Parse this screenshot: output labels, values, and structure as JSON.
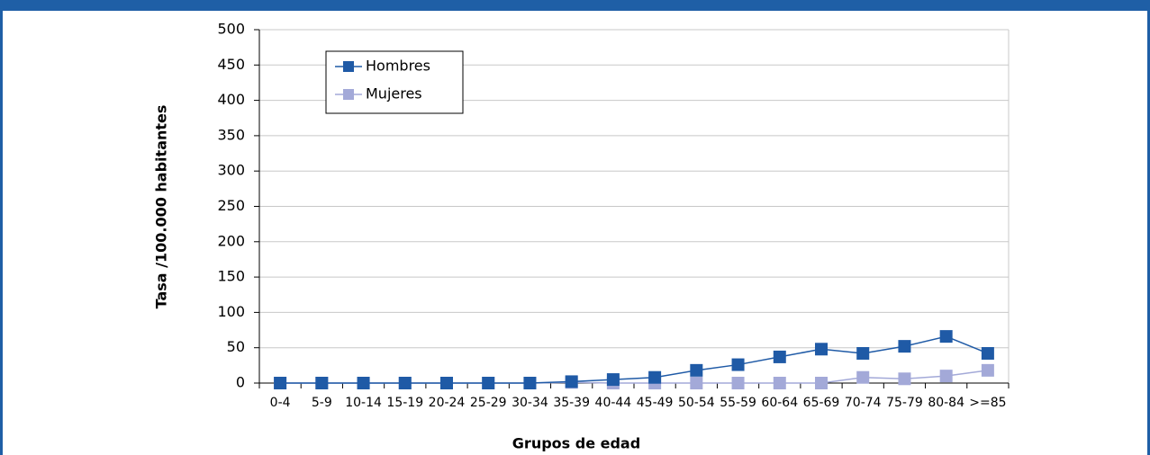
{
  "chart_data": {
    "type": "line",
    "xlabel": "Grupos de edad",
    "ylabel": "Tasa /100.000 habitantes",
    "categories": [
      "0-4",
      "5-9",
      "10-14",
      "15-19",
      "20-24",
      "25-29",
      "30-34",
      "35-39",
      "40-44",
      "45-49",
      "50-54",
      "55-59",
      "60-64",
      "65-69",
      "70-74",
      "75-79",
      "80-84",
      ">=85"
    ],
    "series": [
      {
        "name": "Hombres",
        "color": "#1f5aa6",
        "values": [
          0,
          0,
          0,
          0,
          0,
          0,
          0,
          2,
          5,
          8,
          18,
          26,
          37,
          48,
          42,
          52,
          66,
          42
        ]
      },
      {
        "name": "Mujeres",
        "color": "#a3a9d8",
        "values": [
          0,
          0,
          0,
          0,
          0,
          0,
          0,
          1,
          0,
          0,
          0,
          0,
          0,
          0,
          8,
          6,
          10,
          18
        ]
      }
    ],
    "ylim": [
      0,
      500
    ],
    "yticks": [
      0,
      50,
      100,
      150,
      200,
      250,
      300,
      350,
      400,
      450,
      500
    ],
    "grid": true,
    "legend": "upper left"
  }
}
